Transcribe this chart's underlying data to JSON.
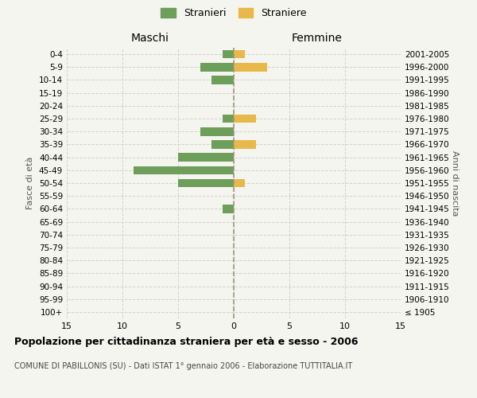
{
  "age_groups": [
    "0-4",
    "5-9",
    "10-14",
    "15-19",
    "20-24",
    "25-29",
    "30-34",
    "35-39",
    "40-44",
    "45-49",
    "50-54",
    "55-59",
    "60-64",
    "65-69",
    "70-74",
    "75-79",
    "80-84",
    "85-89",
    "90-94",
    "95-99",
    "100+"
  ],
  "birth_years": [
    "2001-2005",
    "1996-2000",
    "1991-1995",
    "1986-1990",
    "1981-1985",
    "1976-1980",
    "1971-1975",
    "1966-1970",
    "1961-1965",
    "1956-1960",
    "1951-1955",
    "1946-1950",
    "1941-1945",
    "1936-1940",
    "1931-1935",
    "1926-1930",
    "1921-1925",
    "1916-1920",
    "1911-1915",
    "1906-1910",
    "≤ 1905"
  ],
  "maschi": [
    1,
    3,
    2,
    0,
    0,
    1,
    3,
    2,
    5,
    9,
    5,
    0,
    1,
    0,
    0,
    0,
    0,
    0,
    0,
    0,
    0
  ],
  "femmine": [
    1,
    3,
    0,
    0,
    0,
    2,
    0,
    2,
    0,
    0,
    1,
    0,
    0,
    0,
    0,
    0,
    0,
    0,
    0,
    0,
    0
  ],
  "color_maschi": "#6d9e5a",
  "color_femmine": "#e8b84b",
  "background_color": "#f5f5f0",
  "title": "Popolazione per cittadinanza straniera per età e sesso - 2006",
  "subtitle": "COMUNE DI PABILLONIS (SU) - Dati ISTAT 1° gennaio 2006 - Elaborazione TUTTITALIA.IT",
  "legend_maschi": "Stranieri",
  "legend_femmine": "Straniere",
  "xlim": 15,
  "xlabel_left": "Maschi",
  "xlabel_right": "Femmine",
  "ylabel_left": "Fasce di età",
  "ylabel_right": "Anni di nascita",
  "grid_color": "#cccccc",
  "center_line_color": "#999977"
}
